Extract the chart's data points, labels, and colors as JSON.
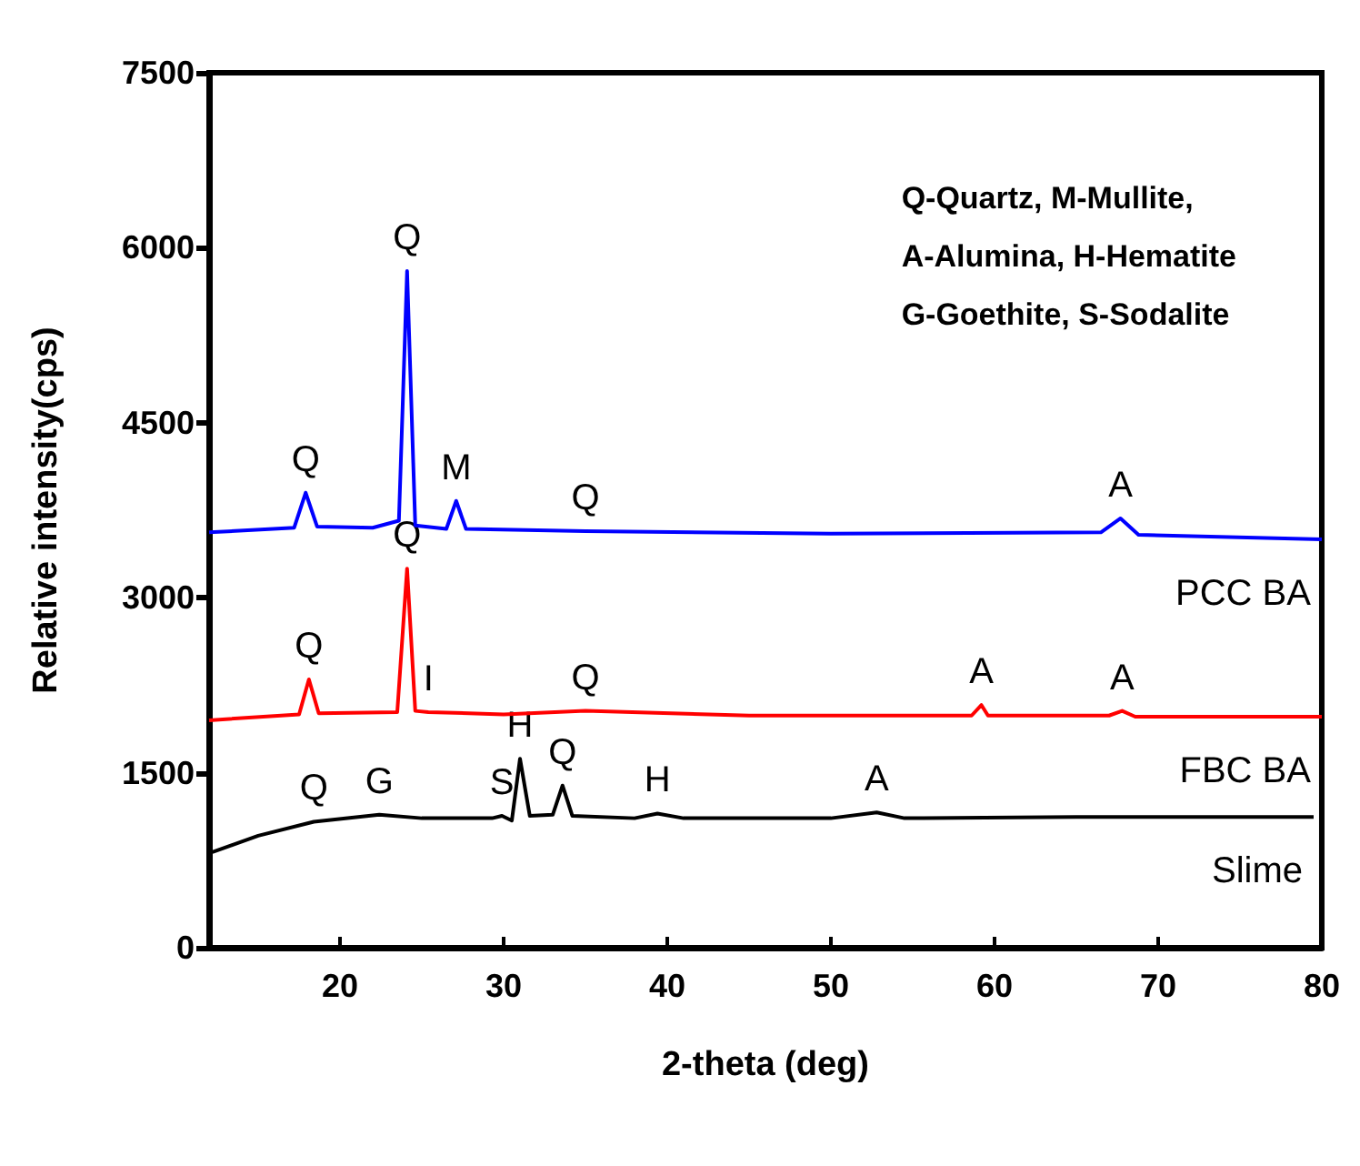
{
  "chart_data": {
    "type": "line",
    "xlabel": "2-theta (deg)",
    "ylabel": "Relative intensity(cps)",
    "xlim": [
      12,
      80
    ],
    "xticks": [
      20,
      30,
      40,
      50,
      60,
      70,
      80
    ],
    "ylim": [
      0,
      7500
    ],
    "yticks": [
      0,
      1500,
      3000,
      4500,
      6000,
      7500
    ],
    "grid": false,
    "legend": false,
    "marker": "none",
    "line_style": "solid",
    "series": [
      {
        "name": "PCC BA",
        "color": "#0000ff",
        "x": [
          12,
          17.2,
          17.9,
          18.6,
          22,
          23.6,
          24.1,
          24.6,
          26.5,
          27.1,
          27.7,
          35,
          50,
          66.5,
          67.7,
          68.8,
          80
        ],
        "values": [
          3560,
          3600,
          3900,
          3610,
          3600,
          3660,
          5800,
          3620,
          3590,
          3830,
          3590,
          3570,
          3550,
          3560,
          3680,
          3540,
          3500
        ]
      },
      {
        "name": "FBC BA",
        "color": "#ff0000",
        "x": [
          12,
          17.5,
          18.1,
          18.7,
          23.5,
          24.1,
          24.6,
          25.4,
          30,
          35,
          45,
          58.6,
          59.2,
          59.6,
          67,
          67.8,
          68.6,
          80
        ],
        "values": [
          1950,
          2000,
          2300,
          2010,
          2020,
          3250,
          2030,
          2020,
          2000,
          2030,
          1990,
          1990,
          2080,
          1990,
          1990,
          2030,
          1980,
          1980
        ]
      },
      {
        "name": "Slime",
        "color": "#000000",
        "x": [
          12.2,
          15,
          18.4,
          22.4,
          25,
          29.3,
          29.9,
          30.5,
          31.0,
          31.6,
          33,
          33.6,
          34.2,
          38,
          39.4,
          41,
          50,
          52.8,
          54.5,
          65,
          79.5
        ],
        "values": [
          820,
          960,
          1080,
          1140,
          1110,
          1110,
          1130,
          1090,
          1620,
          1130,
          1140,
          1390,
          1130,
          1110,
          1150,
          1110,
          1110,
          1160,
          1110,
          1120,
          1120
        ]
      }
    ],
    "annotations": [
      "Q-Quartz, M-Mullite,\nA-Alumina, H-Hematite\nG-Goethite, S-Sodalite",
      {
        "text": "Q",
        "x": 17.9,
        "y": 3900
      },
      {
        "text": "Q",
        "x": 24.1,
        "y": 5800
      },
      {
        "text": "M",
        "x": 27.1,
        "y": 3830
      },
      {
        "text": "Q",
        "x": 35,
        "y": 3570
      },
      {
        "text": "A",
        "x": 67.7,
        "y": 3680
      },
      {
        "text": "Q",
        "x": 18.1,
        "y": 2300
      },
      {
        "text": "Q",
        "x": 24.1,
        "y": 3250
      },
      {
        "text": "I",
        "x": 25.4,
        "y": 2020
      },
      {
        "text": "Q",
        "x": 35,
        "y": 2030
      },
      {
        "text": "A",
        "x": 59.2,
        "y": 2080
      },
      {
        "text": "A",
        "x": 67.8,
        "y": 2030
      },
      {
        "text": "Q",
        "x": 18.4,
        "y": 1080
      },
      {
        "text": "G",
        "x": 22.4,
        "y": 1140
      },
      {
        "text": "S",
        "x": 29.9,
        "y": 1130
      },
      {
        "text": "H",
        "x": 31.0,
        "y": 1620
      },
      {
        "text": "Q",
        "x": 33.6,
        "y": 1390
      },
      {
        "text": "H",
        "x": 39.4,
        "y": 1150
      },
      {
        "text": "A",
        "x": 52.8,
        "y": 1160
      }
    ]
  }
}
